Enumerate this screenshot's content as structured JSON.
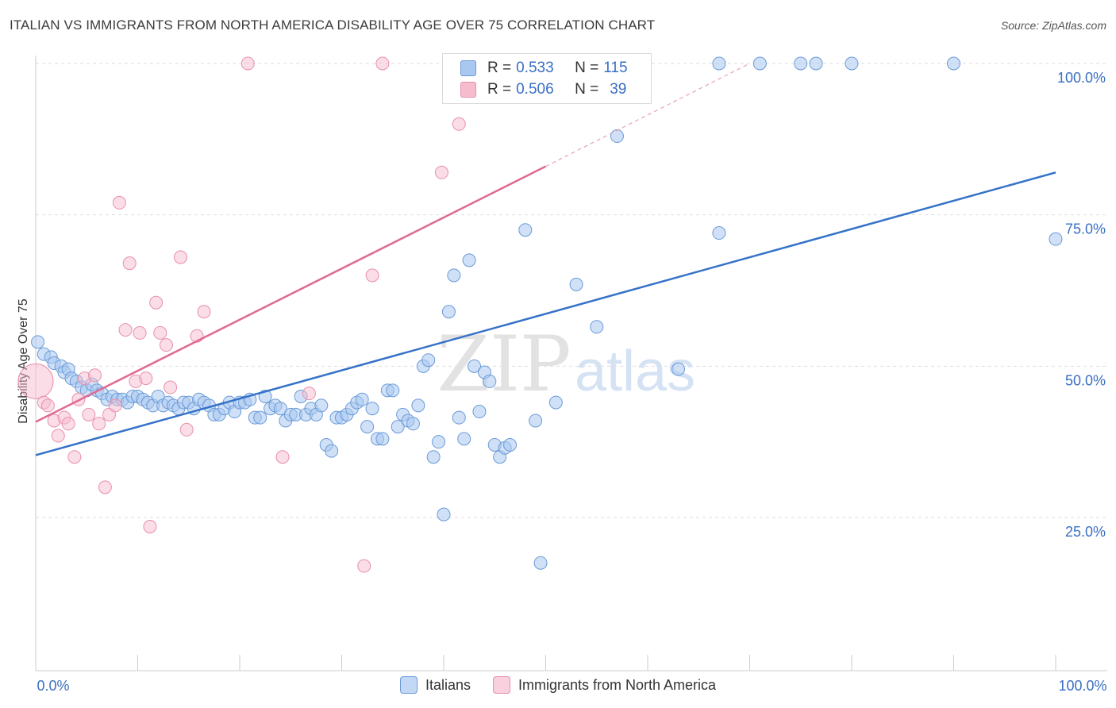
{
  "title": "ITALIAN VS IMMIGRANTS FROM NORTH AMERICA DISABILITY AGE OVER 75 CORRELATION CHART",
  "source": "Source: ZipAtlas.com",
  "watermark_zip": "ZIP",
  "watermark_atlas": "atlas",
  "legend_top": [
    {
      "r_label": "R =",
      "r_value": "0.533",
      "n_label": "N =",
      "n_value": "115"
    },
    {
      "r_label": "R =",
      "r_value": "0.506",
      "n_label": "N =",
      "n_value": "39"
    }
  ],
  "colors": {
    "blue_fill": "#a9c8f0",
    "blue_stroke": "#6a9ad8",
    "blue_line": "#3572c8",
    "pink_fill": "#f6bccd",
    "pink_stroke": "#e890ab",
    "pink_line": "#e06a93",
    "tick_label": "#3a6fc2",
    "grid": "#dddddd"
  },
  "chart_data": {
    "type": "scatter",
    "title": "ITALIAN VS IMMIGRANTS FROM NORTH AMERICA DISABILITY AGE OVER 75 CORRELATION CHART",
    "xlabel": "",
    "ylabel": "Disability Age Over 75",
    "xlim": [
      0,
      100
    ],
    "ylim": [
      0,
      102
    ],
    "x_tick_labels": [
      {
        "value": 0,
        "label": "0.0%"
      },
      {
        "value": 100,
        "label": "100.0%"
      }
    ],
    "y_tick_labels": [
      {
        "value": 25,
        "label": "25.0%"
      },
      {
        "value": 50,
        "label": "50.0%"
      },
      {
        "value": 75,
        "label": "75.0%"
      },
      {
        "value": 100,
        "label": "100.0%"
      }
    ],
    "grid": true,
    "legend_position": "bottom",
    "series": [
      {
        "name": "Italians",
        "r": 0.533,
        "n": 115,
        "trend": {
          "x": [
            0,
            100
          ],
          "y": [
            35.3,
            82.0
          ]
        },
        "points": [
          [
            0.2,
            54
          ],
          [
            0.8,
            52
          ],
          [
            1.5,
            51.5
          ],
          [
            1.8,
            50.5
          ],
          [
            2.5,
            50
          ],
          [
            2.8,
            49
          ],
          [
            3.2,
            49.5
          ],
          [
            3.5,
            48
          ],
          [
            4,
            47.5
          ],
          [
            4.5,
            46.5
          ],
          [
            5,
            46
          ],
          [
            5.5,
            47
          ],
          [
            6,
            46
          ],
          [
            6.5,
            45.5
          ],
          [
            7,
            44.5
          ],
          [
            7.5,
            45
          ],
          [
            8,
            44.5
          ],
          [
            8.5,
            44.5
          ],
          [
            9,
            44
          ],
          [
            9.5,
            45
          ],
          [
            10,
            45
          ],
          [
            10.5,
            44.5
          ],
          [
            11,
            44
          ],
          [
            11.5,
            43.5
          ],
          [
            12,
            45
          ],
          [
            12.5,
            43.5
          ],
          [
            13,
            44
          ],
          [
            13.5,
            43.5
          ],
          [
            14,
            43
          ],
          [
            14.5,
            44
          ],
          [
            15,
            44
          ],
          [
            15.5,
            43
          ],
          [
            16,
            44.5
          ],
          [
            16.5,
            44
          ],
          [
            17,
            43.5
          ],
          [
            17.5,
            42
          ],
          [
            18,
            42
          ],
          [
            18.5,
            43
          ],
          [
            19,
            44
          ],
          [
            19.5,
            42.5
          ],
          [
            20,
            44
          ],
          [
            20.5,
            44
          ],
          [
            21,
            44.5
          ],
          [
            21.5,
            41.5
          ],
          [
            22,
            41.5
          ],
          [
            22.5,
            45
          ],
          [
            23,
            43
          ],
          [
            23.5,
            43.5
          ],
          [
            24,
            43
          ],
          [
            24.5,
            41
          ],
          [
            25,
            42
          ],
          [
            25.5,
            42
          ],
          [
            26,
            45
          ],
          [
            26.5,
            42
          ],
          [
            27,
            43
          ],
          [
            27.5,
            42
          ],
          [
            28,
            43.5
          ],
          [
            28.5,
            37
          ],
          [
            29,
            36
          ],
          [
            29.5,
            41.5
          ],
          [
            30,
            41.5
          ],
          [
            30.5,
            42
          ],
          [
            31,
            43
          ],
          [
            31.5,
            44
          ],
          [
            32,
            44.5
          ],
          [
            32.5,
            40
          ],
          [
            33,
            43
          ],
          [
            33.5,
            38
          ],
          [
            34,
            38
          ],
          [
            34.5,
            46
          ],
          [
            35,
            46
          ],
          [
            35.5,
            40
          ],
          [
            36,
            42
          ],
          [
            36.5,
            41
          ],
          [
            37,
            40.5
          ],
          [
            37.5,
            43.5
          ],
          [
            38,
            50
          ],
          [
            38.5,
            51
          ],
          [
            39,
            35
          ],
          [
            39.5,
            37.5
          ],
          [
            40,
            25.5
          ],
          [
            40.5,
            59
          ],
          [
            41,
            65
          ],
          [
            41.5,
            41.5
          ],
          [
            42,
            38
          ],
          [
            42.5,
            67.5
          ],
          [
            43,
            50
          ],
          [
            43.5,
            42.5
          ],
          [
            44,
            49
          ],
          [
            44.5,
            47.5
          ],
          [
            45,
            37
          ],
          [
            45.5,
            35
          ],
          [
            46,
            36.5
          ],
          [
            46.5,
            37
          ],
          [
            48,
            72.5
          ],
          [
            49,
            41
          ],
          [
            49.5,
            17.5
          ],
          [
            51,
            44
          ],
          [
            53,
            63.5
          ],
          [
            55,
            56.5
          ],
          [
            57,
            88
          ],
          [
            63,
            49.5
          ],
          [
            67,
            72
          ],
          [
            67,
            100
          ],
          [
            71,
            100
          ],
          [
            75,
            100
          ],
          [
            76.5,
            100
          ],
          [
            80,
            100
          ],
          [
            90,
            100
          ],
          [
            100,
            71
          ],
          [
            52,
            100
          ],
          [
            53,
            100
          ],
          [
            54,
            100
          ],
          [
            55,
            100
          ],
          [
            56,
            100
          ],
          [
            57,
            100
          ],
          [
            58,
            100
          ],
          [
            59,
            100
          ]
        ]
      },
      {
        "name": "Immigrants from North America",
        "r": 0.506,
        "n": 39,
        "trend": {
          "x": [
            0,
            50
          ],
          "y": [
            40.8,
            83.0
          ]
        },
        "trend_dashed": {
          "x": [
            50,
            70
          ],
          "y": [
            83.0,
            100
          ]
        },
        "points": [
          [
            0,
            47.5
          ],
          [
            0.8,
            44
          ],
          [
            1.2,
            43.5
          ],
          [
            1.8,
            41
          ],
          [
            2.2,
            38.5
          ],
          [
            2.8,
            41.5
          ],
          [
            3.2,
            40.5
          ],
          [
            3.8,
            35
          ],
          [
            4.2,
            44.5
          ],
          [
            4.8,
            48
          ],
          [
            5.2,
            42
          ],
          [
            5.8,
            48.5
          ],
          [
            6.2,
            40.5
          ],
          [
            6.8,
            30
          ],
          [
            7.2,
            42
          ],
          [
            7.8,
            43.5
          ],
          [
            8.2,
            77
          ],
          [
            8.8,
            56
          ],
          [
            9.2,
            67
          ],
          [
            9.8,
            47.5
          ],
          [
            10.2,
            55.5
          ],
          [
            10.8,
            48
          ],
          [
            11.2,
            23.5
          ],
          [
            11.8,
            60.5
          ],
          [
            12.2,
            55.5
          ],
          [
            12.8,
            53.5
          ],
          [
            13.2,
            46.5
          ],
          [
            14.2,
            68
          ],
          [
            14.8,
            39.5
          ],
          [
            15.8,
            55
          ],
          [
            16.5,
            59
          ],
          [
            20.8,
            100
          ],
          [
            24.2,
            35
          ],
          [
            26.8,
            45.5
          ],
          [
            32.2,
            17
          ],
          [
            33,
            65
          ],
          [
            34,
            100
          ],
          [
            39.8,
            82
          ],
          [
            41.5,
            90
          ]
        ]
      }
    ]
  },
  "bottom_legend": [
    "Italians",
    "Immigrants from North America"
  ]
}
